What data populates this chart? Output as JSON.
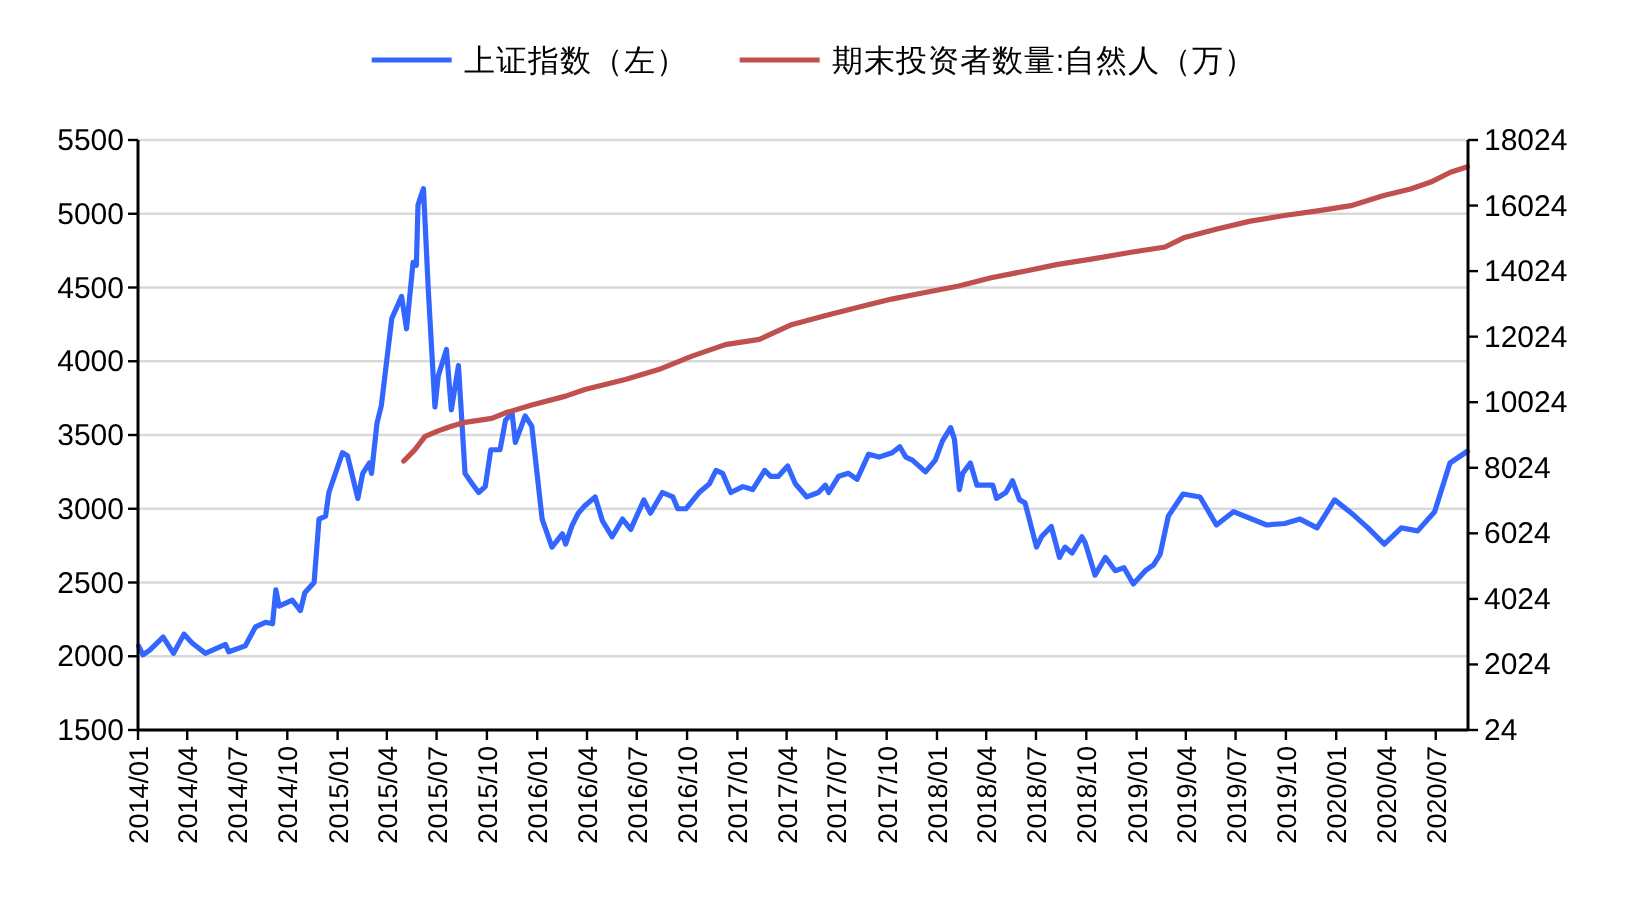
{
  "chart_data": {
    "type": "line",
    "series": [
      {
        "name": "上证指数（左）",
        "color": "#3366ff",
        "x": [
          "2014-01-02",
          "2014-01-10",
          "2014-01-22",
          "2014-02-16",
          "2014-03-07",
          "2014-03-26",
          "2014-04-10",
          "2014-05-04",
          "2014-06-10",
          "2014-06-16",
          "2014-07-16",
          "2014-08-04",
          "2014-08-22",
          "2014-09-04",
          "2014-09-10",
          "2014-09-16",
          "2014-10-10",
          "2014-10-25",
          "2014-11-02",
          "2014-11-19",
          "2014-11-28",
          "2014-12-10",
          "2014-12-16",
          "2015-01-10",
          "2015-01-19",
          "2015-02-07",
          "2015-02-16",
          "2015-02-28",
          "2015-03-04",
          "2015-03-14",
          "2015-03-22",
          "2015-04-10",
          "2015-04-28",
          "2015-05-07",
          "2015-05-19",
          "2015-05-25",
          "2015-05-28",
          "2015-06-07",
          "2015-06-16",
          "2015-06-28",
          "2015-07-04",
          "2015-07-19",
          "2015-07-28",
          "2015-08-10",
          "2015-08-22",
          "2015-09-04",
          "2015-09-16",
          "2015-09-28",
          "2015-10-08",
          "2015-10-25",
          "2015-11-04",
          "2015-11-16",
          "2015-11-22",
          "2015-12-10",
          "2015-12-22",
          "2016-01-10",
          "2016-01-28",
          "2016-02-16",
          "2016-02-22",
          "2016-03-04",
          "2016-03-16",
          "2016-03-28",
          "2016-04-16",
          "2016-04-29",
          "2016-05-17",
          "2016-06-05",
          "2016-06-20",
          "2016-07-14",
          "2016-07-26",
          "2016-08-17",
          "2016-09-05",
          "2016-09-14",
          "2016-09-29",
          "2016-10-23",
          "2016-11-11",
          "2016-11-23",
          "2016-12-05",
          "2016-12-20",
          "2017-01-11",
          "2017-01-29",
          "2017-02-20",
          "2017-03-03",
          "2017-03-17",
          "2017-04-03",
          "2017-04-17",
          "2017-05-08",
          "2017-05-29",
          "2017-06-11",
          "2017-06-17",
          "2017-07-05",
          "2017-07-23",
          "2017-08-08",
          "2017-08-29",
          "2017-09-17",
          "2017-10-11",
          "2017-10-25",
          "2017-11-05",
          "2017-11-17",
          "2017-12-11",
          "2017-12-29",
          "2018-01-11",
          "2018-01-26",
          "2018-02-02",
          "2018-02-11",
          "2018-02-17",
          "2018-03-03",
          "2018-03-15",
          "2018-03-29",
          "2018-04-13",
          "2018-04-20",
          "2018-05-07",
          "2018-05-19",
          "2018-06-01",
          "2018-06-11",
          "2018-07-02",
          "2018-07-11",
          "2018-07-29",
          "2018-08-13",
          "2018-08-23",
          "2018-09-05",
          "2018-09-23",
          "2018-09-29",
          "2018-10-17",
          "2018-11-05",
          "2018-11-23",
          "2018-12-09",
          "2018-12-26",
          "2019-01-17",
          "2019-02-01",
          "2019-02-13",
          "2019-02-28",
          "2019-03-27",
          "2019-04-27",
          "2019-05-27",
          "2019-06-27",
          "2019-08-27",
          "2019-09-29",
          "2019-10-27",
          "2019-11-27",
          "2019-12-29",
          "2020-01-29",
          "2020-02-28",
          "2020-03-29",
          "2020-04-29",
          "2020-05-29",
          "2020-06-29",
          "2020-07-27",
          "2020-08-28"
        ],
        "values": [
          2070,
          2010,
          2040,
          2130,
          2020,
          2150,
          2090,
          2020,
          2080,
          2030,
          2070,
          2200,
          2230,
          2220,
          2450,
          2340,
          2380,
          2310,
          2430,
          2500,
          2930,
          2950,
          3110,
          3380,
          3360,
          3070,
          3240,
          3310,
          3240,
          3580,
          3700,
          4290,
          4440,
          4220,
          4670,
          4650,
          5060,
          5170,
          4470,
          3690,
          3900,
          4080,
          3670,
          3970,
          3240,
          3170,
          3110,
          3150,
          3400,
          3400,
          3600,
          3650,
          3450,
          3630,
          3560,
          2930,
          2740,
          2830,
          2760,
          2880,
          2970,
          3020,
          3080,
          2920,
          2810,
          2930,
          2860,
          3060,
          2970,
          3110,
          3080,
          3000,
          3000,
          3110,
          3170,
          3260,
          3240,
          3110,
          3150,
          3130,
          3260,
          3220,
          3220,
          3290,
          3170,
          3080,
          3110,
          3160,
          3110,
          3220,
          3240,
          3200,
          3370,
          3350,
          3380,
          3420,
          3350,
          3330,
          3250,
          3330,
          3460,
          3550,
          3470,
          3130,
          3240,
          3310,
          3160,
          3160,
          3160,
          3070,
          3110,
          3190,
          3060,
          3040,
          2740,
          2810,
          2880,
          2670,
          2740,
          2700,
          2810,
          2770,
          2550,
          2670,
          2580,
          2600,
          2490,
          2580,
          2620,
          2690,
          2950,
          3100,
          3080,
          2890,
          2980,
          2890,
          2900,
          2930,
          2870,
          3060,
          2970,
          2870,
          2760,
          2870,
          2850,
          2980,
          3310,
          3390
        ]
      },
      {
        "name": "期末投资者数量:自然人（万）",
        "color": "#c0504d",
        "axis": "y2",
        "x": [
          "2015-05-02",
          "2015-05-22",
          "2015-06-10",
          "2015-07-04",
          "2015-07-28",
          "2015-08-22",
          "2015-10-10",
          "2015-11-04",
          "2015-12-22",
          "2016-02-22",
          "2016-03-28",
          "2016-06-10",
          "2016-08-10",
          "2016-10-10",
          "2016-12-10",
          "2017-02-10",
          "2017-04-10",
          "2017-06-10",
          "2017-08-10",
          "2017-10-10",
          "2017-12-10",
          "2018-02-10",
          "2018-04-10",
          "2018-06-10",
          "2018-08-10",
          "2018-10-10",
          "2018-12-22",
          "2019-02-22",
          "2019-03-28",
          "2019-05-28",
          "2019-07-28",
          "2019-09-28",
          "2019-11-28",
          "2020-01-28",
          "2020-03-28",
          "2020-05-16",
          "2020-06-22",
          "2020-07-28",
          "2020-08-28"
        ],
        "values": [
          8230,
          8570,
          8980,
          9150,
          9290,
          9410,
          9530,
          9700,
          9940,
          10210,
          10410,
          10720,
          11020,
          11430,
          11780,
          11940,
          12390,
          12660,
          12920,
          13170,
          13370,
          13570,
          13820,
          14020,
          14230,
          14390,
          14600,
          14760,
          15040,
          15310,
          15550,
          15720,
          15860,
          16020,
          16330,
          16530,
          16740,
          17040,
          17210
        ]
      }
    ],
    "xlim": [
      "2014-01-01",
      "2020-08-29"
    ],
    "xticks": [
      {
        "value": "2014-01",
        "label": "2014/01"
      },
      {
        "value": "2014-04",
        "label": "2014/04"
      },
      {
        "value": "2014-07",
        "label": "2014/07"
      },
      {
        "value": "2014-10",
        "label": "2014/10"
      },
      {
        "value": "2015-01",
        "label": "2015/01"
      },
      {
        "value": "2015-04",
        "label": "2015/04"
      },
      {
        "value": "2015-07",
        "label": "2015/07"
      },
      {
        "value": "2015-10",
        "label": "2015/10"
      },
      {
        "value": "2016-01",
        "label": "2016/01"
      },
      {
        "value": "2016-04",
        "label": "2016/04"
      },
      {
        "value": "2016-07",
        "label": "2016/07"
      },
      {
        "value": "2016-10",
        "label": "2016/10"
      },
      {
        "value": "2017-01",
        "label": "2017/01"
      },
      {
        "value": "2017-04",
        "label": "2017/04"
      },
      {
        "value": "2017-07",
        "label": "2017/07"
      },
      {
        "value": "2017-10",
        "label": "2017/10"
      },
      {
        "value": "2018-01",
        "label": "2018/01"
      },
      {
        "value": "2018-04",
        "label": "2018/04"
      },
      {
        "value": "2018-07",
        "label": "2018/07"
      },
      {
        "value": "2018-10",
        "label": "2018/10"
      },
      {
        "value": "2019-01",
        "label": "2019/01"
      },
      {
        "value": "2019-04",
        "label": "2019/04"
      },
      {
        "value": "2019-07",
        "label": "2019/07"
      },
      {
        "value": "2019-10",
        "label": "2019/10"
      },
      {
        "value": "2020-01",
        "label": "2020/01"
      },
      {
        "value": "2020-04",
        "label": "2020/04"
      },
      {
        "value": "2020-07",
        "label": "2020/07"
      }
    ],
    "ylim": [
      1500,
      5500
    ],
    "yticks": [
      1500,
      2000,
      2500,
      3000,
      3500,
      4000,
      4500,
      5000,
      5500
    ],
    "y2lim": [
      24,
      18024
    ],
    "y2ticks": [
      24,
      2024,
      4024,
      6024,
      8024,
      10024,
      12024,
      14024,
      16024,
      18024
    ],
    "grid": "y",
    "legend": "top",
    "line_style": "solid"
  }
}
